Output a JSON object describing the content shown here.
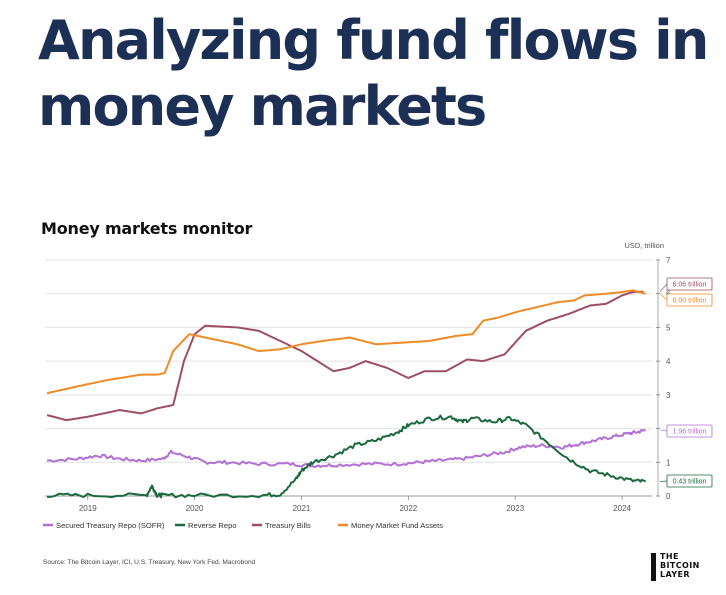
{
  "headline": {
    "line1": "Analyzing fund flows in",
    "line2": "money markets"
  },
  "chart_data": {
    "type": "line",
    "title": "Money markets monitor",
    "ylabel": "USD, trillion",
    "ylim": [
      0,
      7
    ],
    "yticks": [
      "0",
      "1",
      "2",
      "3",
      "4",
      "5",
      "6",
      "7"
    ],
    "xlim": [
      2018.6,
      2024.28
    ],
    "xticks": [
      {
        "x": 2019.0,
        "label": "2019"
      },
      {
        "x": 2020.0,
        "label": "2020"
      },
      {
        "x": 2021.0,
        "label": "2021"
      },
      {
        "x": 2022.0,
        "label": "2022"
      },
      {
        "x": 2023.0,
        "label": "2023"
      },
      {
        "x": 2024.0,
        "label": "2024"
      }
    ],
    "grid": "horizontal",
    "legend_position": "bottom",
    "series": [
      {
        "name": "Secured Treasury Repo (SOFR)",
        "color": "#b270d6",
        "label": "1.96 trillion",
        "jitter": 0.05,
        "x": [
          2018.62,
          2018.9,
          2019.1,
          2019.3,
          2019.5,
          2019.7,
          2019.78,
          2019.95,
          2020.1,
          2020.3,
          2020.6,
          2020.9,
          2021.1,
          2021.3,
          2021.6,
          2021.9,
          2022.1,
          2022.3,
          2022.5,
          2022.7,
          2022.9,
          2023.05,
          2023.25,
          2023.45,
          2023.6,
          2023.75,
          2023.9,
          2024.05,
          2024.15,
          2024.22
        ],
        "y": [
          1.05,
          1.1,
          1.2,
          1.1,
          1.05,
          1.1,
          1.3,
          1.15,
          1.0,
          1.0,
          0.95,
          0.95,
          0.9,
          0.92,
          0.95,
          0.95,
          1.0,
          1.05,
          1.1,
          1.2,
          1.3,
          1.45,
          1.5,
          1.45,
          1.55,
          1.65,
          1.75,
          1.85,
          1.9,
          1.96
        ]
      },
      {
        "name": "Reverse Repo",
        "color": "#1b6a3e",
        "label": "0.43 trillion",
        "jitter": 0.06,
        "x": [
          2018.62,
          2019.0,
          2019.55,
          2019.6,
          2019.65,
          2019.7,
          2020.0,
          2020.6,
          2020.8,
          2020.95,
          2021.0,
          2021.1,
          2021.3,
          2021.5,
          2021.7,
          2021.9,
          2022.0,
          2022.2,
          2022.4,
          2022.5,
          2022.6,
          2022.8,
          2022.95,
          2023.1,
          2023.3,
          2023.5,
          2023.7,
          2023.9,
          2024.1,
          2024.22
        ],
        "y": [
          0.02,
          0.02,
          0.02,
          0.3,
          0.02,
          0.02,
          0.02,
          0.02,
          0.05,
          0.5,
          0.75,
          1.0,
          1.2,
          1.5,
          1.65,
          1.9,
          2.1,
          2.3,
          2.35,
          2.2,
          2.3,
          2.2,
          2.3,
          2.1,
          1.6,
          1.1,
          0.75,
          0.6,
          0.45,
          0.43
        ]
      },
      {
        "name": "Treasury Bills",
        "color": "#9e4e62",
        "label": "6.06 trillion",
        "jitter": 0,
        "x": [
          2018.62,
          2018.8,
          2019.0,
          2019.15,
          2019.3,
          2019.5,
          2019.65,
          2019.8,
          2019.9,
          2020.0,
          2020.1,
          2020.4,
          2020.6,
          2020.8,
          2021.0,
          2021.15,
          2021.3,
          2021.45,
          2021.6,
          2021.8,
          2022.0,
          2022.15,
          2022.35,
          2022.55,
          2022.7,
          2022.9,
          2023.1,
          2023.3,
          2023.5,
          2023.7,
          2023.85,
          2024.0,
          2024.1,
          2024.2
        ],
        "y": [
          2.4,
          2.25,
          2.35,
          2.45,
          2.55,
          2.45,
          2.6,
          2.7,
          4.0,
          4.8,
          5.05,
          5.0,
          4.9,
          4.6,
          4.3,
          4.0,
          3.7,
          3.8,
          4.0,
          3.8,
          3.5,
          3.7,
          3.7,
          4.05,
          4.0,
          4.2,
          4.9,
          5.2,
          5.4,
          5.65,
          5.7,
          5.95,
          6.05,
          6.06
        ]
      },
      {
        "name": "Money Market Fund Assets",
        "color": "#ee8b25",
        "label": "6.00 trillion",
        "jitter": 0,
        "x": [
          2018.62,
          2018.9,
          2019.2,
          2019.5,
          2019.65,
          2019.72,
          2019.8,
          2019.95,
          2020.1,
          2020.4,
          2020.6,
          2020.8,
          2021.0,
          2021.2,
          2021.45,
          2021.7,
          2021.95,
          2022.2,
          2022.45,
          2022.6,
          2022.7,
          2022.85,
          2023.0,
          2023.2,
          2023.4,
          2023.55,
          2023.65,
          2023.85,
          2024.0,
          2024.1,
          2024.22
        ],
        "y": [
          3.05,
          3.25,
          3.45,
          3.6,
          3.6,
          3.65,
          4.3,
          4.8,
          4.7,
          4.5,
          4.3,
          4.35,
          4.5,
          4.6,
          4.7,
          4.5,
          4.55,
          4.6,
          4.75,
          4.8,
          5.2,
          5.3,
          5.45,
          5.6,
          5.75,
          5.8,
          5.95,
          6.0,
          6.05,
          6.1,
          6.0
        ]
      }
    ],
    "source": "Source: The Bitcoin Layer, ICI, U.S. Treasury, New York Fed, Macrobond"
  },
  "logo": {
    "line1": "THE",
    "line2": "BITCOIN",
    "line3": "LAYER"
  }
}
